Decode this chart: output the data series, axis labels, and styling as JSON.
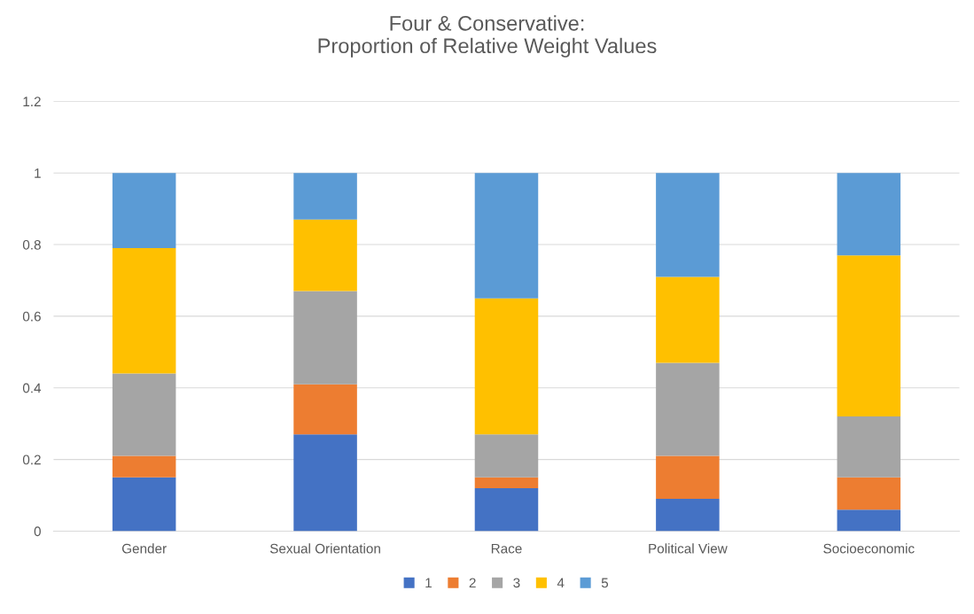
{
  "chart_data": {
    "type": "bar",
    "title": "Four & Conservative:\nProportion of Relative Weight Values",
    "categories": [
      "Gender",
      "Sexual Orientation",
      "Race",
      "Political View",
      "Socioeconomic"
    ],
    "stacked": true,
    "series": [
      {
        "name": "1",
        "color": "#4472c4",
        "values": [
          0.15,
          0.27,
          0.12,
          0.09,
          0.06
        ]
      },
      {
        "name": "2",
        "color": "#ed7d31",
        "values": [
          0.06,
          0.14,
          0.03,
          0.12,
          0.09
        ]
      },
      {
        "name": "3",
        "color": "#a5a5a5",
        "values": [
          0.23,
          0.26,
          0.12,
          0.26,
          0.17
        ]
      },
      {
        "name": "4",
        "color": "#ffc000",
        "values": [
          0.35,
          0.2,
          0.38,
          0.24,
          0.45
        ]
      },
      {
        "name": "5",
        "color": "#5b9bd5",
        "values": [
          0.21,
          0.13,
          0.35,
          0.29,
          0.23
        ]
      }
    ],
    "ylim": [
      0,
      1.2
    ],
    "yticks": [
      0,
      {
        "value": 0.2,
        "label": "0.2"
      },
      {
        "value": 0.4,
        "label": "0.4"
      },
      {
        "value": 0.6,
        "label": "0.6"
      },
      {
        "value": 0.8,
        "label": "0.8"
      },
      1,
      {
        "value": 1.2,
        "label": "1.2"
      }
    ],
    "grid": "y",
    "legend": "bottom"
  }
}
